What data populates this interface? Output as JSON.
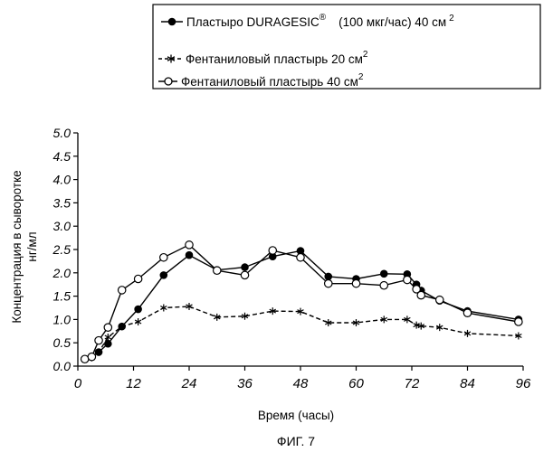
{
  "chart_data": {
    "type": "line",
    "title": "",
    "xlabel": "Время (часы)",
    "ylabel": "Концентрация в сыворотке нг/мл",
    "ylabel_lines": [
      "Концентрация в сыворотке",
      "нг/мл"
    ],
    "xlim": [
      0,
      96
    ],
    "ylim": [
      0,
      5
    ],
    "x_ticks": [
      0,
      12,
      24,
      36,
      48,
      60,
      72,
      84,
      96
    ],
    "x_tick_labels": [
      "0",
      "12",
      "24",
      "36",
      "48",
      "60",
      "72",
      "84",
      "96"
    ],
    "y_ticks": [
      0,
      0.5,
      1,
      1.5,
      2,
      2.5,
      3,
      3.5,
      4,
      4.5,
      5
    ],
    "y_tick_labels": [
      "0.0",
      "0.5",
      "1.0",
      "1.5",
      "2.0",
      "2.5",
      "3.0",
      "3.5",
      "4.0",
      "4.5",
      "5.0"
    ],
    "grid": false,
    "legend_position": "top-right",
    "caption": "ФИГ. 7",
    "series": [
      {
        "name": "Пластыро DURAGESIC",
        "name_suffix": "(100 мкг/час) 40 см",
        "name_sup_mark": "®",
        "name_sup_unit": "2",
        "marker": "filled-circle",
        "line": "solid",
        "color": "#000000",
        "points": [
          [
            1.5,
            0.15
          ],
          [
            3,
            0.2
          ],
          [
            4.5,
            0.3
          ],
          [
            6.5,
            0.48
          ],
          [
            9.5,
            0.85
          ],
          [
            13,
            1.22
          ],
          [
            18.5,
            1.95
          ],
          [
            24,
            2.38
          ],
          [
            30,
            2.06
          ],
          [
            36,
            2.12
          ],
          [
            42,
            2.35
          ],
          [
            48,
            2.47
          ],
          [
            54,
            1.92
          ],
          [
            60,
            1.87
          ],
          [
            66,
            1.98
          ],
          [
            71,
            1.97
          ],
          [
            73,
            1.75
          ],
          [
            74,
            1.62
          ],
          [
            78,
            1.4
          ],
          [
            84,
            1.18
          ],
          [
            95,
            1.0
          ]
        ]
      },
      {
        "name": "Фентаниловый пластырь 20 см",
        "name_sup_unit": "2",
        "marker": "star",
        "line": "dashed",
        "color": "#000000",
        "points": [
          [
            1.5,
            0.15
          ],
          [
            3,
            0.18
          ],
          [
            4.5,
            0.3
          ],
          [
            6.5,
            0.62
          ],
          [
            9.5,
            0.85
          ],
          [
            13,
            0.95
          ],
          [
            18.5,
            1.25
          ],
          [
            24,
            1.28
          ],
          [
            30,
            1.05
          ],
          [
            36,
            1.07
          ],
          [
            42,
            1.18
          ],
          [
            48,
            1.17
          ],
          [
            54,
            0.93
          ],
          [
            60,
            0.93
          ],
          [
            66,
            1.0
          ],
          [
            71,
            1.0
          ],
          [
            73,
            0.88
          ],
          [
            74,
            0.86
          ],
          [
            78,
            0.83
          ],
          [
            84,
            0.7
          ],
          [
            95,
            0.65
          ]
        ]
      },
      {
        "name": "Фентаниловый пластырь 40 см",
        "name_sup_unit": "2",
        "marker": "open-circle",
        "line": "solid",
        "color": "#000000",
        "points": [
          [
            1.5,
            0.15
          ],
          [
            3,
            0.2
          ],
          [
            4.5,
            0.55
          ],
          [
            6.5,
            0.83
          ],
          [
            9.5,
            1.63
          ],
          [
            13,
            1.87
          ],
          [
            18.5,
            2.33
          ],
          [
            24,
            2.6
          ],
          [
            30,
            2.05
          ],
          [
            36,
            1.95
          ],
          [
            42,
            2.48
          ],
          [
            48,
            2.33
          ],
          [
            54,
            1.77
          ],
          [
            60,
            1.77
          ],
          [
            66,
            1.73
          ],
          [
            71,
            1.85
          ],
          [
            73,
            1.65
          ],
          [
            74,
            1.52
          ],
          [
            78,
            1.42
          ],
          [
            84,
            1.14
          ],
          [
            95,
            0.95
          ]
        ]
      }
    ]
  }
}
